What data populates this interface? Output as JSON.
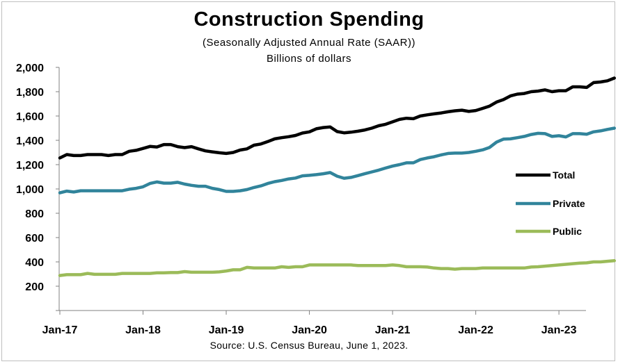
{
  "header": {
    "title": "Construction  Spending",
    "subtitle": "(Seasonally Adjusted Annual Rate (SAAR))",
    "units": "Billions of dollars"
  },
  "footer": {
    "source": "Source: U.S. Census Bureau, June 1, 2023."
  },
  "chart_data": {
    "type": "line",
    "title": "Construction  Spending",
    "subtitle": "(Seasonally Adjusted Annual Rate (SAAR))",
    "ylabel": "Billions of dollars",
    "ylim": [
      200,
      2000
    ],
    "yticks": [
      200,
      400,
      600,
      800,
      1000,
      1200,
      1400,
      1600,
      1800,
      2000
    ],
    "ytick_labels": [
      "200",
      "400",
      "600",
      "800",
      "1,000",
      "1,200",
      "1,400",
      "1,600",
      "1,800",
      "2,000"
    ],
    "x_start": "Jan-17",
    "x_end": "Apr-23",
    "xticks": [
      "Jan-17",
      "Jan-18",
      "Jan-19",
      "Jan-20",
      "Jan-21",
      "Jan-22",
      "Jan-23"
    ],
    "grid": false,
    "legend_position": "right",
    "series": [
      {
        "name": "Total",
        "color": "#000000",
        "values": [
          1255,
          1283,
          1275,
          1275,
          1283,
          1283,
          1283,
          1275,
          1283,
          1283,
          1310,
          1318,
          1333,
          1350,
          1345,
          1365,
          1365,
          1348,
          1340,
          1348,
          1330,
          1313,
          1305,
          1298,
          1292,
          1300,
          1320,
          1330,
          1360,
          1370,
          1390,
          1412,
          1422,
          1430,
          1440,
          1460,
          1470,
          1495,
          1505,
          1510,
          1472,
          1462,
          1467,
          1475,
          1485,
          1500,
          1520,
          1532,
          1552,
          1572,
          1582,
          1578,
          1600,
          1610,
          1618,
          1625,
          1635,
          1643,
          1648,
          1638,
          1645,
          1663,
          1682,
          1715,
          1735,
          1765,
          1780,
          1785,
          1800,
          1805,
          1815,
          1800,
          1808,
          1808,
          1840,
          1840,
          1835,
          1875,
          1880,
          1890,
          1912
        ]
      },
      {
        "name": "Private",
        "color": "#31849b",
        "values": [
          968,
          982,
          975,
          985,
          985,
          985,
          985,
          985,
          985,
          985,
          998,
          1005,
          1018,
          1045,
          1058,
          1048,
          1048,
          1055,
          1040,
          1030,
          1022,
          1022,
          1005,
          995,
          980,
          980,
          985,
          995,
          1012,
          1025,
          1045,
          1060,
          1070,
          1082,
          1090,
          1108,
          1112,
          1118,
          1125,
          1135,
          1105,
          1088,
          1095,
          1110,
          1125,
          1140,
          1155,
          1172,
          1188,
          1200,
          1215,
          1215,
          1242,
          1255,
          1265,
          1280,
          1292,
          1295,
          1295,
          1300,
          1310,
          1322,
          1342,
          1385,
          1410,
          1412,
          1422,
          1432,
          1448,
          1458,
          1455,
          1432,
          1438,
          1428,
          1455,
          1455,
          1450,
          1470,
          1478,
          1490,
          1500
        ]
      },
      {
        "name": "Public",
        "color": "#9bbb59",
        "values": [
          288,
          295,
          295,
          295,
          305,
          298,
          298,
          298,
          298,
          305,
          305,
          305,
          305,
          305,
          310,
          310,
          312,
          312,
          320,
          315,
          315,
          315,
          315,
          318,
          325,
          335,
          335,
          355,
          350,
          350,
          350,
          350,
          360,
          355,
          360,
          360,
          375,
          375,
          375,
          375,
          375,
          375,
          375,
          370,
          370,
          370,
          370,
          370,
          375,
          370,
          360,
          360,
          360,
          358,
          350,
          345,
          345,
          340,
          345,
          345,
          345,
          350,
          350,
          350,
          350,
          350,
          350,
          350,
          358,
          360,
          365,
          370,
          375,
          380,
          385,
          390,
          392,
          400,
          400,
          405,
          410
        ]
      }
    ]
  }
}
